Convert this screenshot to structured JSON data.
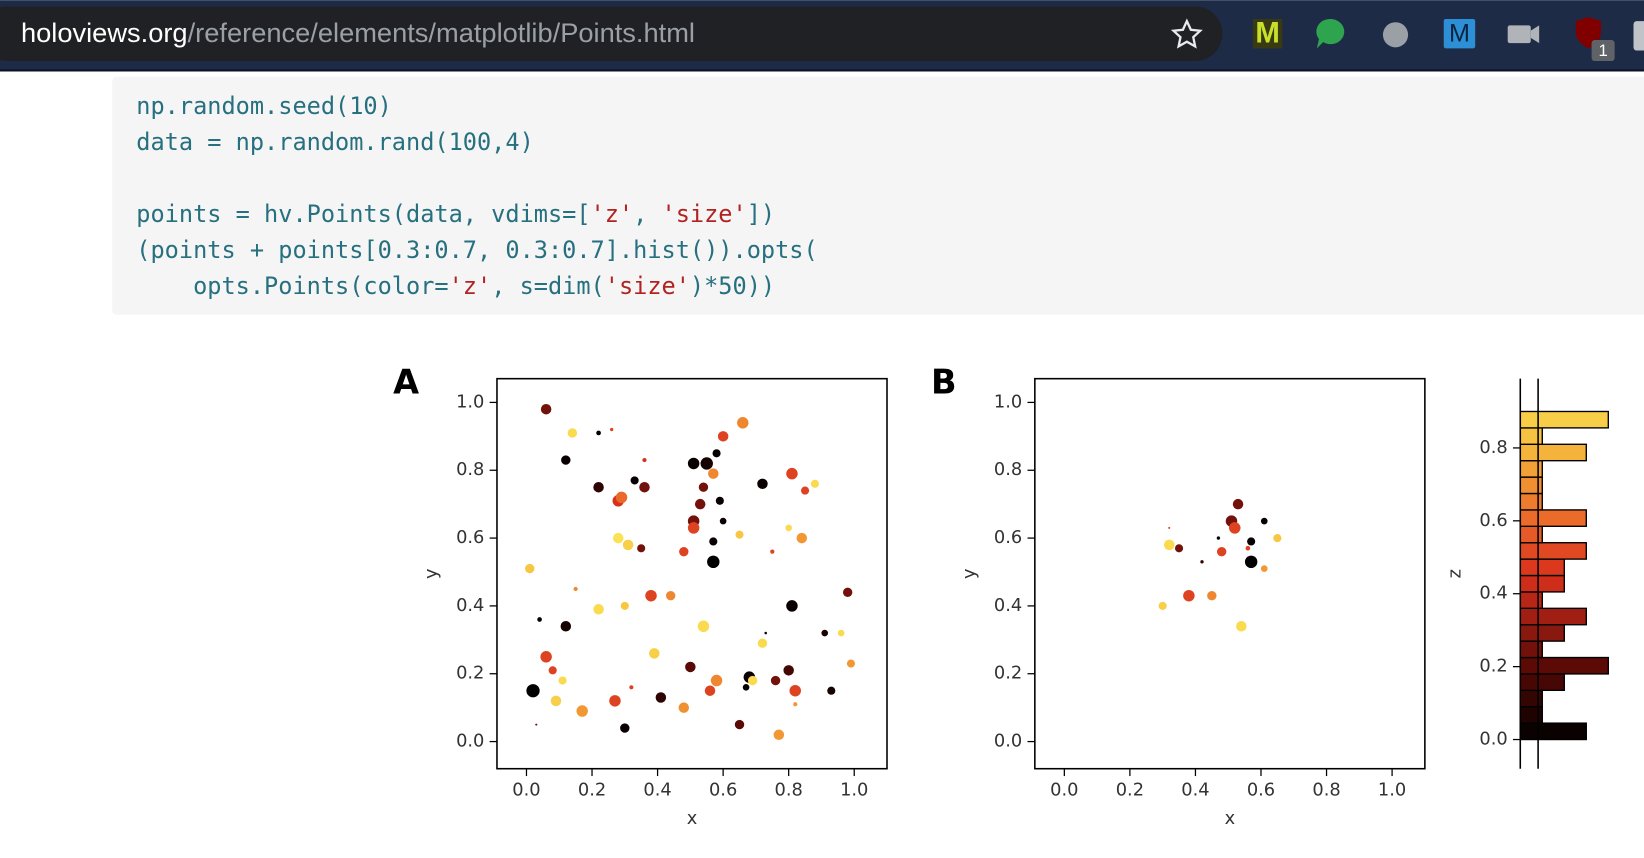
{
  "browser": {
    "url_host": "holoviews.org",
    "url_path": "/reference/elements/matplotlib/Points.html",
    "ext_m1": "M",
    "ext_m2": "M",
    "badge": "1"
  },
  "code": [
    [
      "np.random.seed(10)",
      "data = np.random.rand(100,4)"
    ],
    [
      "points = hv.Points(data, vdims=['z', 'size'])",
      "(points + points[0.3:0.7, 0.3:0.7].hist()).opts(",
      "    opts.Points(color='z', s=dim('size')*50))"
    ]
  ],
  "chart_data": [
    {
      "type": "scatter",
      "title": "A",
      "x_label": "x",
      "y_label": "y",
      "xlim": [
        -0.09,
        1.1
      ],
      "ylim": [
        -0.08,
        1.07
      ],
      "xticks": [
        {
          "value": 0,
          "label": "0.0"
        },
        0.2,
        0.4,
        0.6,
        0.8,
        {
          "value": 1,
          "label": "1.0"
        }
      ],
      "yticks": [
        {
          "value": 0,
          "label": "0.0"
        },
        0.2,
        0.4,
        0.6,
        0.8,
        {
          "value": 1,
          "label": "1.0"
        }
      ],
      "x": [
        0.06,
        0.14,
        0.22,
        0.26,
        0.12,
        0.22,
        0.28,
        0.29,
        0.33,
        0.36,
        0.36,
        0.51,
        0.55,
        0.6,
        0.66,
        0.58,
        0.57,
        0.54,
        0.53,
        0.59,
        0.72,
        0.81,
        0.85,
        0.88,
        0.51,
        0.51,
        0.6,
        0.8,
        0.84,
        0.28,
        0.31,
        0.35,
        0.48,
        0.57,
        0.57,
        0.65,
        0.75,
        0.01,
        0.15,
        0.22,
        0.3,
        0.38,
        0.44,
        0.81,
        0.98,
        0.04,
        0.12,
        0.54,
        0.72,
        0.73,
        0.91,
        0.96,
        0.06,
        0.08,
        0.11,
        0.02,
        0.09,
        0.17,
        0.27,
        0.32,
        0.39,
        0.41,
        0.5,
        0.56,
        0.58,
        0.68,
        0.69,
        0.67,
        0.76,
        0.8,
        0.82,
        0.93,
        0.99,
        0.3,
        0.03,
        0.48,
        0.65,
        0.77,
        0.82
      ],
      "values": [
        0.98,
        0.91,
        0.91,
        0.92,
        0.83,
        0.75,
        0.71,
        0.72,
        0.77,
        0.75,
        0.83,
        0.82,
        0.82,
        0.9,
        0.94,
        0.85,
        0.79,
        0.75,
        0.7,
        0.71,
        0.76,
        0.79,
        0.74,
        0.76,
        0.65,
        0.63,
        0.65,
        0.63,
        0.6,
        0.6,
        0.58,
        0.57,
        0.56,
        0.59,
        0.53,
        0.61,
        0.56,
        0.51,
        0.45,
        0.39,
        0.4,
        0.43,
        0.43,
        0.4,
        0.44,
        0.36,
        0.34,
        0.34,
        0.29,
        0.32,
        0.32,
        0.32,
        0.25,
        0.21,
        0.18,
        0.15,
        0.12,
        0.09,
        0.12,
        0.16,
        0.26,
        0.13,
        0.22,
        0.15,
        0.18,
        0.19,
        0.18,
        0.16,
        0.18,
        0.21,
        0.15,
        0.15,
        0.23,
        0.04,
        0.05,
        0.1,
        0.05,
        0.02,
        0.11
      ],
      "z": [
        0.25,
        0.92,
        0.02,
        0.5,
        0.02,
        0.1,
        0.45,
        0.6,
        0.02,
        0.25,
        0.45,
        0.02,
        0.05,
        0.5,
        0.68,
        0.02,
        0.68,
        0.25,
        0.25,
        0.02,
        0.02,
        0.5,
        0.5,
        0.92,
        0.25,
        0.5,
        0.02,
        0.92,
        0.72,
        0.95,
        0.88,
        0.25,
        0.5,
        0.02,
        0,
        0.85,
        0.5,
        0.85,
        0.68,
        0.92,
        0.85,
        0.5,
        0.68,
        0.02,
        0.25,
        0.02,
        0.05,
        0.92,
        0.92,
        0.02,
        0.05,
        0.92,
        0.5,
        0.5,
        0.92,
        0,
        0.88,
        0.72,
        0.5,
        0.5,
        0.88,
        0.1,
        0.2,
        0.5,
        0.68,
        0.02,
        0.92,
        0.02,
        0.25,
        0.15,
        0.5,
        0.05,
        0.72,
        0.02,
        0.25,
        0.7,
        0.2,
        0.72,
        0.72
      ],
      "sizes": [
        0.5,
        0.4,
        0.1,
        0.05,
        0.4,
        0.5,
        0.6,
        0.6,
        0.3,
        0.5,
        0.08,
        0.6,
        0.7,
        0.5,
        0.6,
        0.3,
        0.5,
        0.4,
        0.5,
        0.3,
        0.5,
        0.6,
        0.3,
        0.3,
        0.6,
        0.6,
        0.2,
        0.2,
        0.5,
        0.5,
        0.5,
        0.3,
        0.4,
        0.3,
        0.7,
        0.3,
        0.08,
        0.4,
        0.08,
        0.5,
        0.3,
        0.6,
        0.4,
        0.6,
        0.4,
        0.1,
        0.5,
        0.6,
        0.4,
        0.03,
        0.2,
        0.2,
        0.6,
        0.3,
        0.3,
        0.8,
        0.5,
        0.6,
        0.6,
        0.08,
        0.5,
        0.5,
        0.5,
        0.5,
        0.6,
        0.6,
        0.4,
        0.2,
        0.4,
        0.5,
        0.6,
        0.3,
        0.3,
        0.4,
        0.02,
        0.5,
        0.4,
        0.5,
        0.08
      ]
    },
    {
      "type": "scatter",
      "title": "B",
      "x_label": "x",
      "y_label": "y",
      "xlim": [
        -0.09,
        1.1
      ],
      "ylim": [
        -0.08,
        1.07
      ],
      "xticks": [
        {
          "value": 0,
          "label": "0.0"
        },
        0.2,
        0.4,
        0.6,
        0.8,
        {
          "value": 1,
          "label": "1.0"
        }
      ],
      "yticks": [
        {
          "value": 0,
          "label": "0.0"
        },
        0.2,
        0.4,
        0.6,
        0.8,
        {
          "value": 1,
          "label": "1.0"
        }
      ],
      "x": [
        0.32,
        0.35,
        0.32,
        0.38,
        0.45,
        0.3,
        0.42,
        0.48,
        0.47,
        0.51,
        0.52,
        0.53,
        0.57,
        0.56,
        0.57,
        0.61,
        0.61,
        0.65,
        0.54
      ],
      "values": [
        0.58,
        0.57,
        0.63,
        0.43,
        0.43,
        0.4,
        0.53,
        0.56,
        0.6,
        0.65,
        0.63,
        0.7,
        0.59,
        0.57,
        0.53,
        0.65,
        0.51,
        0.6,
        0.34
      ],
      "z": [
        0.92,
        0.25,
        0.5,
        0.5,
        0.68,
        0.88,
        0.1,
        0.5,
        0.02,
        0.25,
        0.5,
        0.25,
        0.02,
        0.5,
        0,
        0.02,
        0.72,
        0.85,
        0.92
      ],
      "sizes": [
        0.5,
        0.3,
        0.02,
        0.6,
        0.4,
        0.3,
        0.05,
        0.4,
        0.05,
        0.6,
        0.6,
        0.5,
        0.3,
        0.1,
        0.7,
        0.2,
        0.2,
        0.3,
        0.5
      ]
    },
    {
      "type": "histogram",
      "y_label": "z",
      "orientation": "horizontal",
      "xlim": [
        0,
        4.05
      ],
      "ylim": [
        -0.08,
        0.99
      ],
      "yticks": [
        {
          "value": 0,
          "label": "0.0"
        },
        0.2,
        0.4,
        0.6,
        0.8
      ],
      "bins": [
        0,
        0.045,
        0.09,
        0.135,
        0.18,
        0.225,
        0.27,
        0.315,
        0.36,
        0.405,
        0.45,
        0.495,
        0.54,
        0.585,
        0.63,
        0.675,
        0.72,
        0.765,
        0.81,
        0.855,
        0.9
      ],
      "values": [
        3,
        1,
        1,
        2,
        4,
        1,
        2,
        3,
        1,
        2,
        2,
        3,
        1,
        3,
        1,
        1,
        1,
        3,
        1,
        4
      ]
    }
  ]
}
